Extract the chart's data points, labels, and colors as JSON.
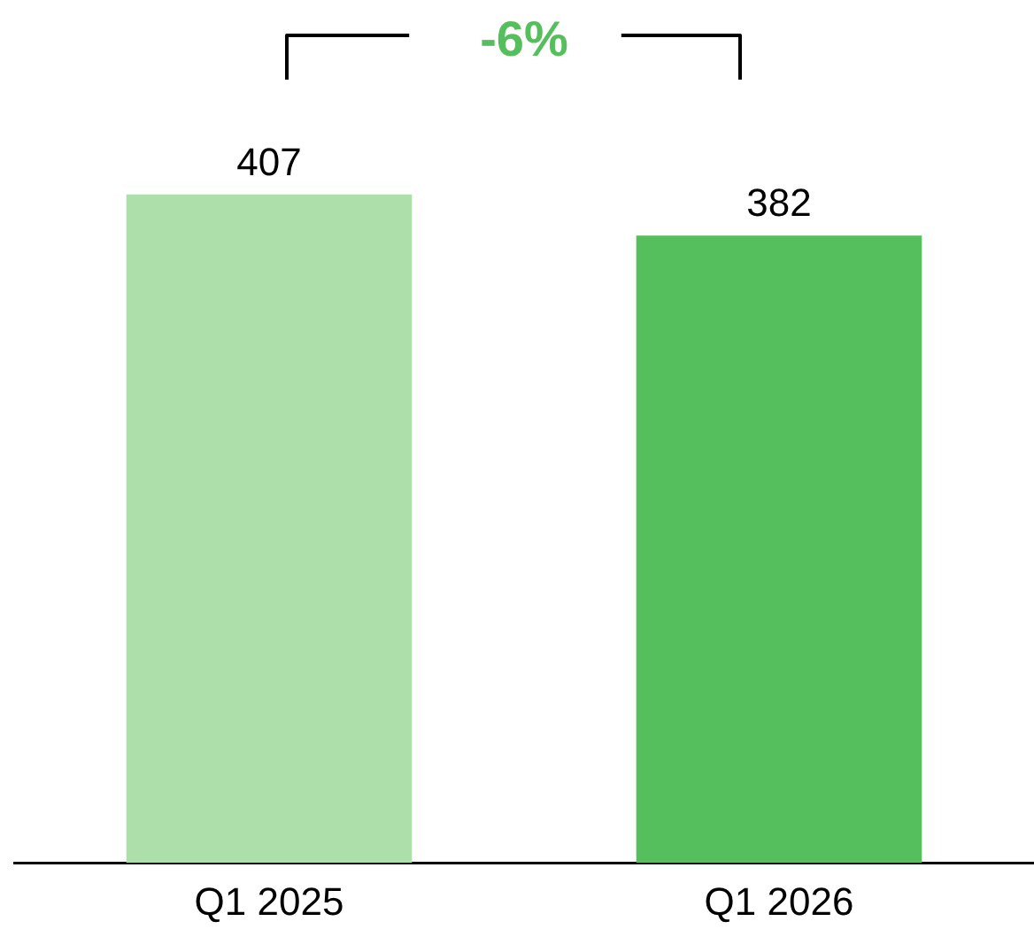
{
  "chart_data": {
    "type": "bar",
    "categories": [
      "Q1 2025",
      "Q1 2026"
    ],
    "values": [
      407,
      382
    ],
    "colors": [
      "#acdfaa",
      "#56bf5d"
    ],
    "data_labels": true,
    "grid": false,
    "legend": false,
    "tick_labels": "x",
    "annotations": [
      "-6%"
    ]
  }
}
